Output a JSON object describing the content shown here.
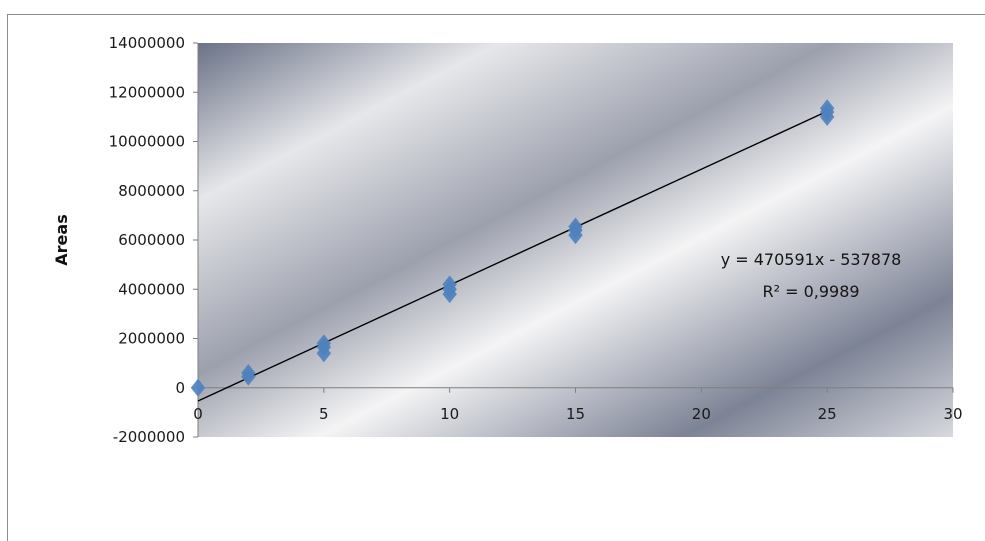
{
  "chart_data": {
    "type": "scatter",
    "title": "",
    "xlabel": "",
    "ylabel": "Areas",
    "xlim": [
      0,
      30
    ],
    "ylim": [
      -2000000,
      14000000
    ],
    "x_ticks": [
      0,
      5,
      10,
      15,
      20,
      25,
      30
    ],
    "y_ticks": [
      -2000000,
      0,
      2000000,
      4000000,
      6000000,
      8000000,
      10000000,
      12000000,
      14000000
    ],
    "x_tick_labels": [
      "0",
      "5",
      "10",
      "15",
      "20",
      "25",
      "30"
    ],
    "y_tick_labels": [
      "-2000000",
      "0",
      "2000000",
      "4000000",
      "6000000",
      "8000000",
      "10000000",
      "12000000",
      "14000000"
    ],
    "grid": false,
    "legend": "none",
    "series": [
      {
        "marker": "diamond",
        "color": "#4f81bd",
        "points": [
          {
            "x": 0,
            "y": 0
          },
          {
            "x": 2,
            "y": 450000
          },
          {
            "x": 2,
            "y": 600000
          },
          {
            "x": 5,
            "y": 1400000
          },
          {
            "x": 5,
            "y": 1650000
          },
          {
            "x": 5,
            "y": 1800000
          },
          {
            "x": 10,
            "y": 3800000
          },
          {
            "x": 10,
            "y": 4000000
          },
          {
            "x": 10,
            "y": 4200000
          },
          {
            "x": 15,
            "y": 6200000
          },
          {
            "x": 15,
            "y": 6400000
          },
          {
            "x": 15,
            "y": 6550000
          },
          {
            "x": 25,
            "y": 11000000
          },
          {
            "x": 25,
            "y": 11200000
          },
          {
            "x": 25,
            "y": 11350000
          }
        ]
      }
    ],
    "trendline": {
      "type": "linear",
      "slope": 470591,
      "intercept": -537878,
      "x_range": [
        0,
        25
      ],
      "color": "#000000",
      "equation_label": "y = 470591x - 537878",
      "r2_label": "R² = 0,9989"
    },
    "plot_background": [
      "#6b7287",
      "#e6e7ea",
      "#9ca0ad",
      "#f4f4f5",
      "#7d8396",
      "#d7d9de"
    ]
  }
}
